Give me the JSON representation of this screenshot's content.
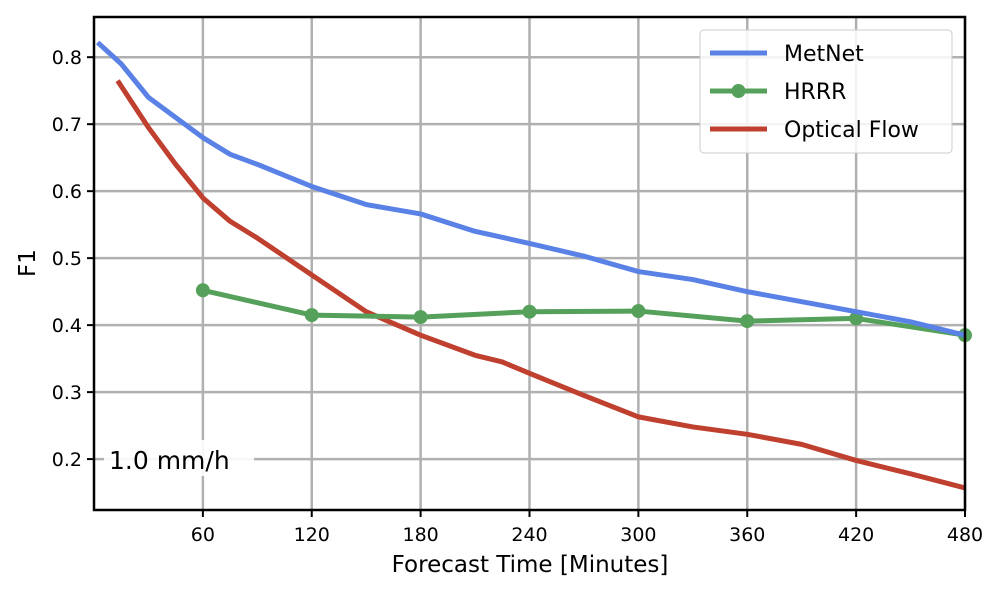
{
  "chart_data": {
    "type": "line",
    "title": "",
    "xlabel": "Forecast Time [Minutes]",
    "ylabel": "F1",
    "xlim": [
      0,
      480
    ],
    "ylim": [
      0.124,
      0.86
    ],
    "xticks": [
      60,
      120,
      180,
      240,
      300,
      360,
      420,
      480
    ],
    "yticks": [
      0.2,
      0.3,
      0.4,
      0.5,
      0.6,
      0.7,
      0.8
    ],
    "grid": true,
    "legend_position": "top-right",
    "annotation": "1.0 mm/h",
    "series": [
      {
        "name": "MetNet",
        "color": "#5a82e6",
        "markers": false,
        "x": [
          2,
          15,
          30,
          45,
          60,
          75,
          90,
          120,
          150,
          180,
          210,
          240,
          270,
          300,
          330,
          360,
          390,
          420,
          450,
          480
        ],
        "y": [
          0.822,
          0.79,
          0.74,
          0.71,
          0.68,
          0.655,
          0.64,
          0.607,
          0.58,
          0.566,
          0.54,
          0.522,
          0.503,
          0.48,
          0.468,
          0.45,
          0.435,
          0.42,
          0.405,
          0.385
        ]
      },
      {
        "name": "HRRR",
        "color": "#55a05a",
        "markers": true,
        "x": [
          60,
          120,
          180,
          240,
          300,
          360,
          420,
          480
        ],
        "y": [
          0.452,
          0.415,
          0.412,
          0.42,
          0.421,
          0.406,
          0.41,
          0.385
        ]
      },
      {
        "name": "Optical Flow",
        "color": "#c0402f",
        "markers": false,
        "x": [
          13,
          30,
          45,
          60,
          75,
          90,
          120,
          150,
          180,
          210,
          225,
          240,
          270,
          300,
          330,
          360,
          390,
          420,
          450,
          480
        ],
        "y": [
          0.765,
          0.695,
          0.64,
          0.59,
          0.555,
          0.53,
          0.475,
          0.42,
          0.385,
          0.355,
          0.345,
          0.328,
          0.295,
          0.263,
          0.248,
          0.237,
          0.222,
          0.198,
          0.178,
          0.157
        ]
      }
    ]
  }
}
